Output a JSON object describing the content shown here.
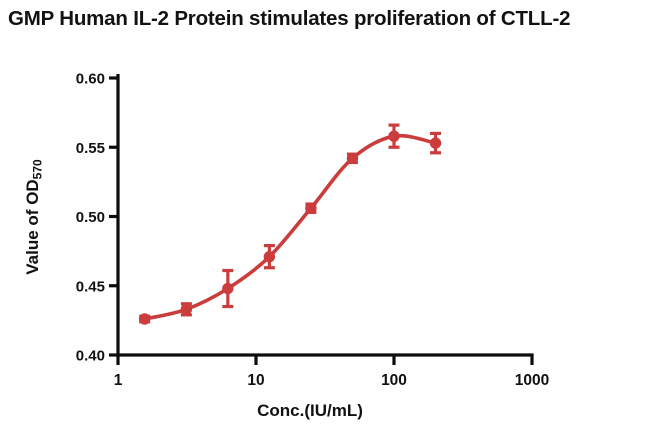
{
  "title": "GMP Human IL-2 Protein stimulates proliferation of CTLL-2",
  "colors": {
    "series_red": "#cb3c3c",
    "axis_black": "#0d0d0d",
    "background": "#ffffff"
  },
  "chart_data": {
    "type": "scatter",
    "title": "GMP Human IL-2 Protein stimulates proliferation of CTLL-2",
    "xlabel": "Conc.(IU/mL)",
    "ylabel": "Value of OD",
    "ylabel_subscript": "570",
    "x_scale": "log10",
    "xlim": [
      1,
      1000
    ],
    "ylim": [
      0.4,
      0.6
    ],
    "x_ticks": [
      1,
      10,
      100,
      1000
    ],
    "y_ticks": [
      0.4,
      0.45,
      0.5,
      0.55,
      0.6
    ],
    "grid": false,
    "legend_position": "none",
    "curve_fit": "4PL sigmoidal dose-response",
    "series": [
      {
        "name": "GMP Human IL-2",
        "color": "#cb3c3c",
        "marker": "circle",
        "x": [
          1.56,
          3.13,
          6.25,
          12.5,
          25,
          50,
          100,
          200
        ],
        "y": [
          0.426,
          0.433,
          0.448,
          0.471,
          0.506,
          0.542,
          0.558,
          0.553
        ],
        "y_err": [
          0.002,
          0.004,
          0.013,
          0.008,
          0.003,
          0.003,
          0.008,
          0.007
        ]
      }
    ]
  }
}
